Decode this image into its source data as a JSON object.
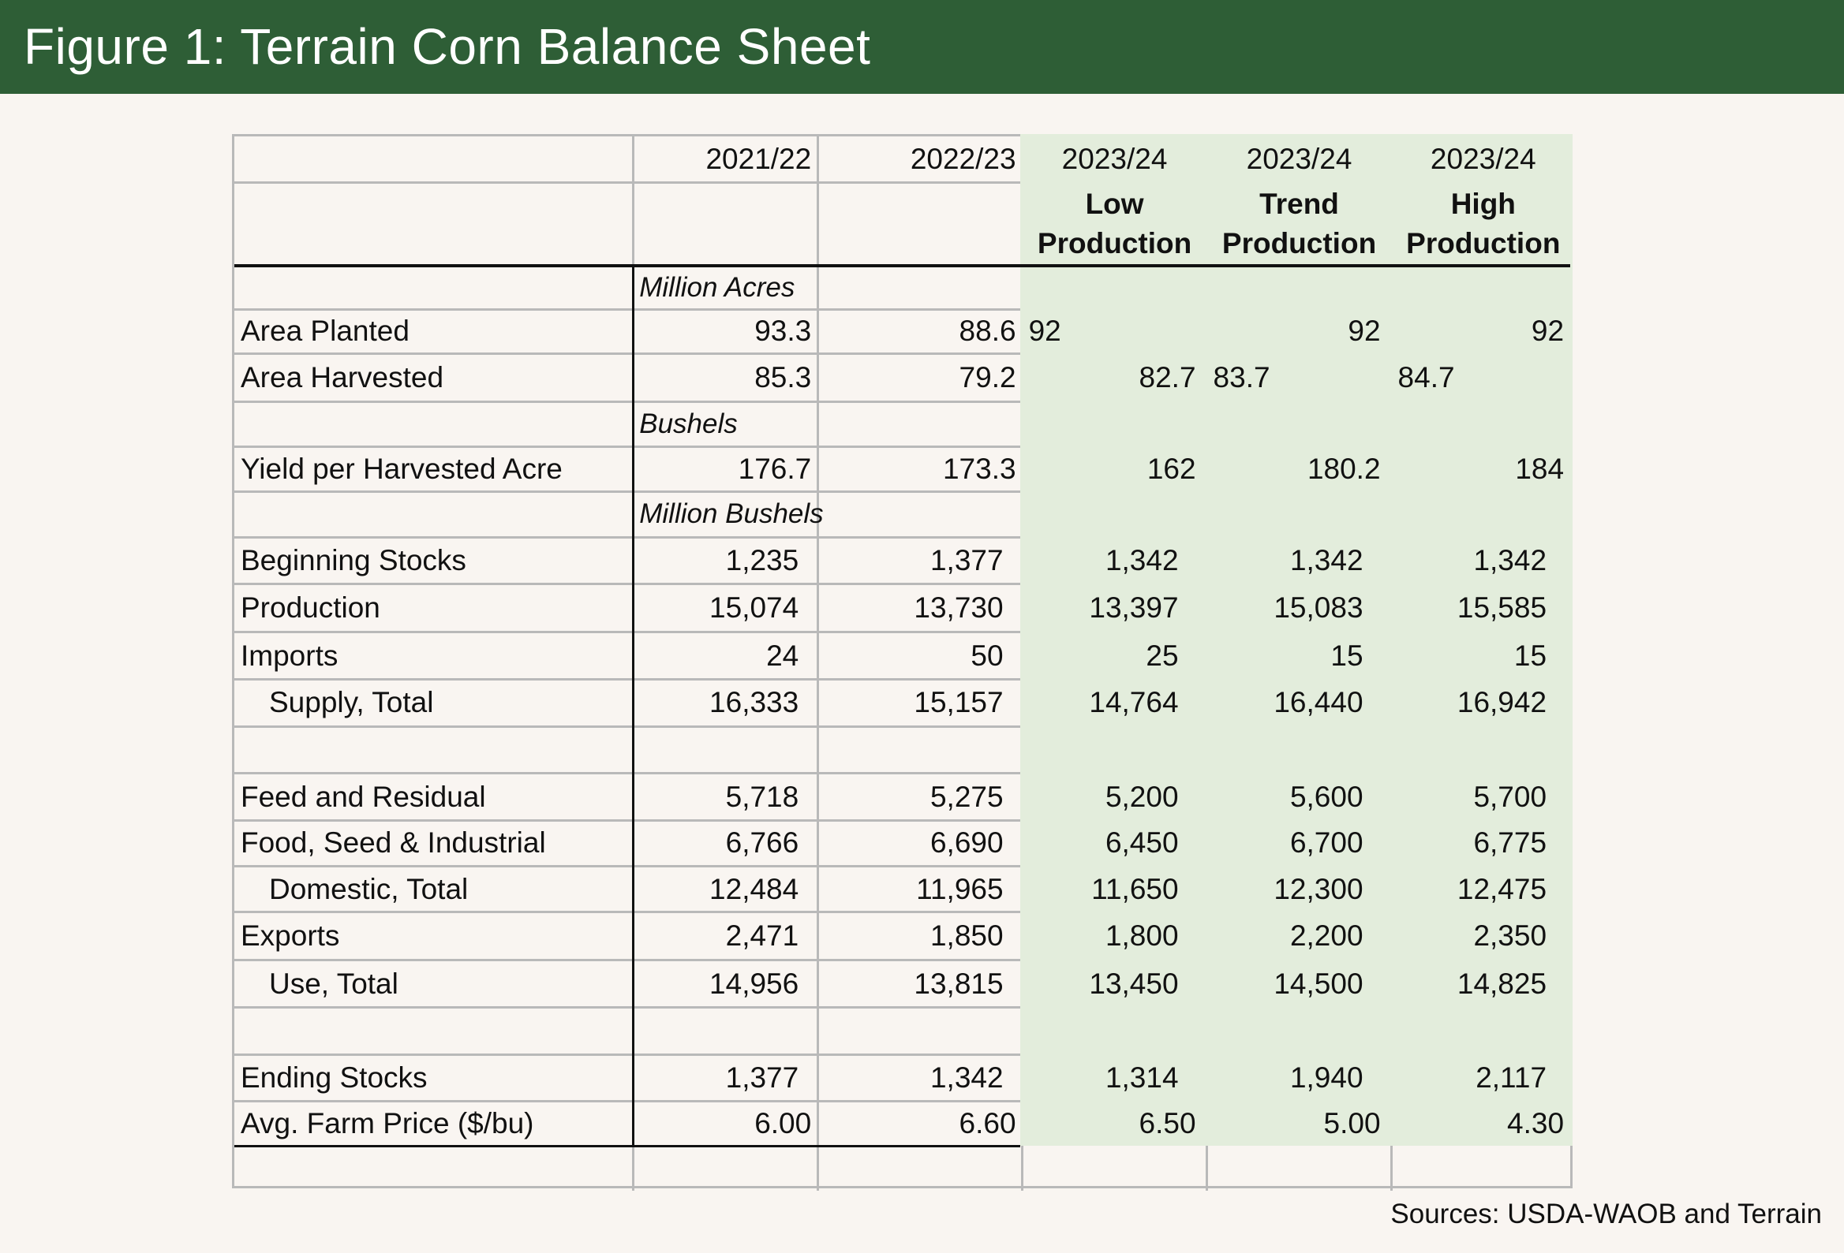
{
  "title": "Figure 1: Terrain Corn Balance Sheet",
  "source": "Sources: USDA-WAOB and Terrain",
  "colors": {
    "header_bg": "#2e5e36",
    "projection_bg": "#e3eddc",
    "page_bg": "#f9f5f1"
  },
  "columns": [
    {
      "year": "2021/22",
      "scenario": ""
    },
    {
      "year": "2022/23",
      "scenario": ""
    },
    {
      "year": "2023/24",
      "scenario": "Low Production"
    },
    {
      "year": "2023/24",
      "scenario": "Trend Production"
    },
    {
      "year": "2023/24",
      "scenario": "High Production"
    }
  ],
  "rows": [
    {
      "label": "",
      "unit": "Million Acres",
      "values": []
    },
    {
      "label": "Area Planted",
      "values": [
        "93.3",
        "88.6",
        "92",
        "92",
        "92"
      ]
    },
    {
      "label": "Area Harvested",
      "values": [
        "85.3",
        "79.2",
        "82.7",
        "83.7",
        "84.7"
      ]
    },
    {
      "label": "",
      "unit": "Bushels",
      "values": []
    },
    {
      "label": "Yield per Harvested Acre",
      "values": [
        "176.7",
        "173.3",
        "162",
        "180.2",
        "184"
      ]
    },
    {
      "label": "",
      "unit": "Million Bushels",
      "values": []
    },
    {
      "label": "Beginning Stocks",
      "values": [
        "1,235",
        "1,377",
        "1,342",
        "1,342",
        "1,342"
      ]
    },
    {
      "label": "Production",
      "values": [
        "15,074",
        "13,730",
        "13,397",
        "15,083",
        "15,585"
      ]
    },
    {
      "label": "Imports",
      "values": [
        "24",
        "50",
        "25",
        "15",
        "15"
      ]
    },
    {
      "label": "Supply, Total",
      "indent": true,
      "values": [
        "16,333",
        "15,157",
        "14,764",
        "16,440",
        "16,942"
      ]
    },
    {
      "label": "",
      "values": []
    },
    {
      "label": "Feed and Residual",
      "values": [
        "5,718",
        "5,275",
        "5,200",
        "5,600",
        "5,700"
      ]
    },
    {
      "label": "Food, Seed & Industrial",
      "values": [
        "6,766",
        "6,690",
        "6,450",
        "6,700",
        "6,775"
      ]
    },
    {
      "label": "Domestic, Total",
      "indent": true,
      "values": [
        "12,484",
        "11,965",
        "11,650",
        "12,300",
        "12,475"
      ]
    },
    {
      "label": "Exports",
      "values": [
        "2,471",
        "1,850",
        "1,800",
        "2,200",
        "2,350"
      ]
    },
    {
      "label": "Use, Total",
      "indent": true,
      "values": [
        "14,956",
        "13,815",
        "13,450",
        "14,500",
        "14,825"
      ]
    },
    {
      "label": "",
      "values": []
    },
    {
      "label": "Ending Stocks",
      "values": [
        "1,377",
        "1,342",
        "1,314",
        "1,940",
        "2,117"
      ]
    },
    {
      "label": "Avg. Farm Price ($/bu)",
      "values": [
        "6.00",
        "6.60",
        "6.50",
        "5.00",
        "4.30"
      ]
    },
    {
      "label": "",
      "values": []
    }
  ]
}
